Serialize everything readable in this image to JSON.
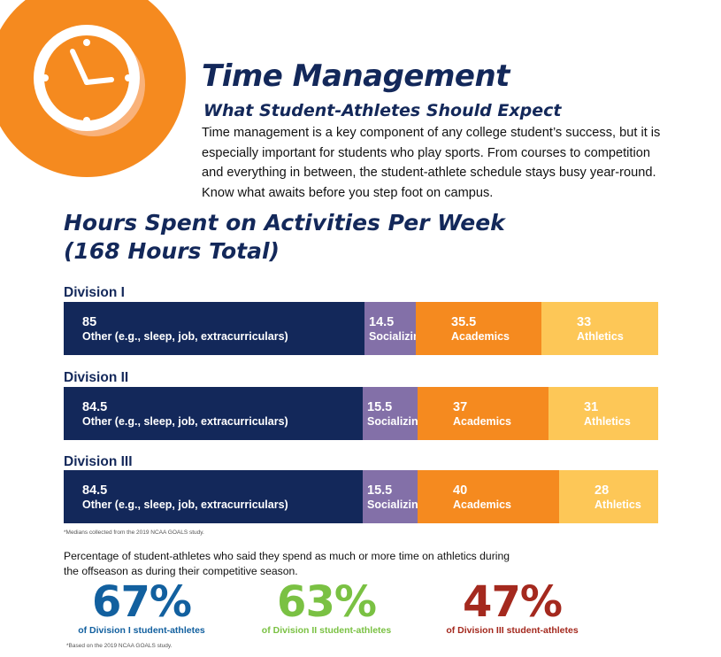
{
  "header": {
    "title": "Time Management",
    "subtitle": "What Student-Athletes Should Expect",
    "intro": "Time management is a key component of any college student’s success, but it is especially important for students who play sports. From courses to competition and everything in between, the student-athlete schedule stays busy year-round. Know what awaits before you step foot on campus."
  },
  "icon": "clock-icon",
  "colors": {
    "navy": "#13285a",
    "purple": "#8370a8",
    "orange": "#f58a1f",
    "yellow": "#fdc757",
    "blue": "#12609f",
    "green": "#7ac143",
    "red": "#a4291e"
  },
  "chart_data": {
    "type": "bar",
    "stacked": true,
    "orientation": "horizontal",
    "title": "Hours Spent on Activities Per Week",
    "subtitle": "(168 Hours Total)",
    "categories": [
      "Division I",
      "Division II",
      "Division III"
    ],
    "series": [
      {
        "name": "Other (e.g., sleep, job, extracurriculars)",
        "values": [
          85,
          84.5,
          84.5
        ],
        "color": "#13285a"
      },
      {
        "name": "Socializing",
        "values": [
          14.5,
          15.5,
          15.5
        ],
        "color": "#8370a8"
      },
      {
        "name": "Academics",
        "values": [
          35.5,
          37,
          40
        ],
        "color": "#f58a1f"
      },
      {
        "name": "Athletics",
        "values": [
          33,
          31,
          28
        ],
        "color": "#fdc757"
      }
    ],
    "total": 168,
    "footnote": "*Medians collected from the 2019 NCAA GOALS study."
  },
  "offseason": {
    "text": "Percentage of student-athletes who said they spend as much or more time on athletics during the offseason as during their competitive season.",
    "stats": [
      {
        "value": "67%",
        "label": "of Division I student-athletes",
        "color": "#12609f"
      },
      {
        "value": "63%",
        "label": "of Division II student-athletes",
        "color": "#7ac143"
      },
      {
        "value": "47%",
        "label": "of Division III student-athletes",
        "color": "#a4291e"
      }
    ],
    "footnote": "*Based on the 2019 NCAA GOALS study."
  }
}
